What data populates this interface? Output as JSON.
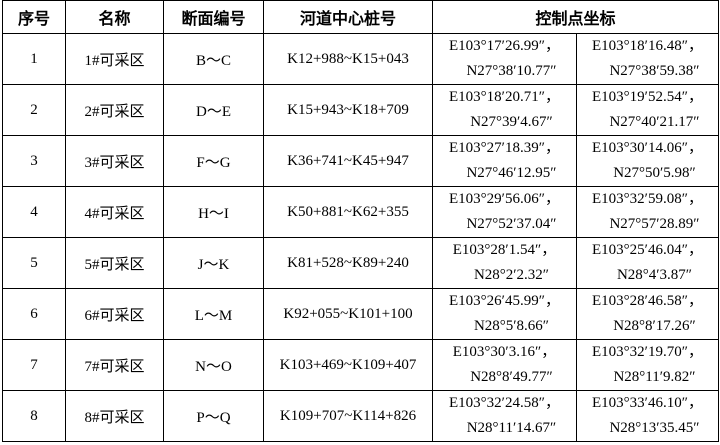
{
  "headers": [
    "序号",
    "名称",
    "断面编号",
    "河道中心桩号",
    "控制点坐标"
  ],
  "rows": [
    {
      "no": "1",
      "name": "1#可采区",
      "section": "B～C",
      "stake": "K12+988~K15+043",
      "p1e": "E103°17′26.99″，",
      "p1n": "N27°38′10.77″",
      "p2e": "E103°18′16.48″，",
      "p2n": "N27°38′59.38″"
    },
    {
      "no": "2",
      "name": "2#可采区",
      "section": "D～E",
      "stake": "K15+943~K18+709",
      "p1e": "E103°18′20.71″，",
      "p1n": "N27°39′4.67″",
      "p2e": "E103°19′52.54″，",
      "p2n": "N27°40′21.17″"
    },
    {
      "no": "3",
      "name": "3#可采区",
      "section": "F～G",
      "stake": "K36+741~K45+947",
      "p1e": "E103°27′18.39″，",
      "p1n": "N27°46′12.95″",
      "p2e": "E103°30′14.06″，",
      "p2n": "N27°50′5.98″"
    },
    {
      "no": "4",
      "name": "4#可采区",
      "section": "H～I",
      "stake": "K50+881~K62+355",
      "p1e": "E103°29′56.06″，",
      "p1n": "N27°52′37.04″",
      "p2e": "E103°32′59.08″，",
      "p2n": "N27°57′28.89″"
    },
    {
      "no": "5",
      "name": "5#可采区",
      "section": "J～K",
      "stake": "K81+528~K89+240",
      "p1e": "E103°28′1.54″，",
      "p1n": "N28°2′2.32″",
      "p2e": "E103°25′46.04″，",
      "p2n": "N28°4′3.87″"
    },
    {
      "no": "6",
      "name": "6#可采区",
      "section": "L～M",
      "stake": "K92+055~K101+100",
      "p1e": "E103°26′45.99″，",
      "p1n": "N28°5′8.66″",
      "p2e": "E103°28′46.58″，",
      "p2n": "N28°8′17.26″"
    },
    {
      "no": "7",
      "name": "7#可采区",
      "section": "N～O",
      "stake": "K103+469~K109+407",
      "p1e": "E103°30′3.16″，",
      "p1n": "N28°8′49.77″",
      "p2e": "E103°32′19.70″，",
      "p2n": "N28°11′9.82″"
    },
    {
      "no": "8",
      "name": "8#可采区",
      "section": "P～Q",
      "stake": "K109+707~K114+826",
      "p1e": "E103°32′24.58″，",
      "p1n": "N28°11′14.67″",
      "p2e": "E103°33′46.10″，",
      "p2n": "N28°13′35.45″"
    }
  ]
}
